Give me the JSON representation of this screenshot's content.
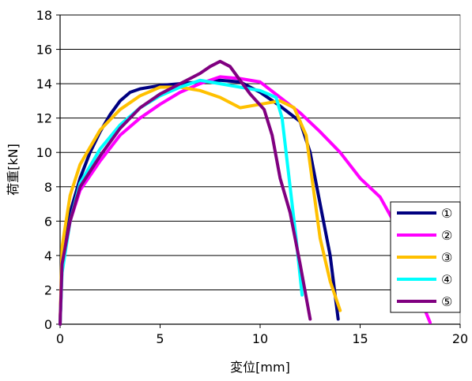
{
  "chart_data": {
    "type": "line",
    "xlabel": "変位[mm]",
    "ylabel": "荷重[kN]",
    "xlim": [
      0,
      20
    ],
    "ylim": [
      0,
      18
    ],
    "x_ticks": [
      0,
      5,
      10,
      15,
      20
    ],
    "y_ticks": [
      0,
      2,
      4,
      6,
      8,
      10,
      12,
      14,
      16,
      18
    ],
    "grid": "horizontal",
    "legend_position": "right",
    "series": [
      {
        "name": "①",
        "color": "#000080",
        "points": [
          [
            0,
            0
          ],
          [
            0.1,
            3.5
          ],
          [
            0.5,
            6.5
          ],
          [
            1,
            8.5
          ],
          [
            1.5,
            10
          ],
          [
            2,
            11.2
          ],
          [
            2.5,
            12.2
          ],
          [
            3,
            13
          ],
          [
            3.5,
            13.5
          ],
          [
            4,
            13.7
          ],
          [
            5,
            13.9
          ],
          [
            6,
            14
          ],
          [
            7,
            14.1
          ],
          [
            8,
            14.2
          ],
          [
            9,
            14.1
          ],
          [
            10,
            13.5
          ],
          [
            11,
            12.7
          ],
          [
            12,
            11.8
          ],
          [
            12.5,
            10
          ],
          [
            13,
            7
          ],
          [
            13.5,
            4
          ],
          [
            13.9,
            0.3
          ]
        ]
      },
      {
        "name": "②",
        "color": "#FF00FF",
        "points": [
          [
            0,
            0
          ],
          [
            0.1,
            3.5
          ],
          [
            0.5,
            6
          ],
          [
            1,
            7.8
          ],
          [
            2,
            9.5
          ],
          [
            3,
            11
          ],
          [
            4,
            12
          ],
          [
            5,
            12.8
          ],
          [
            6,
            13.5
          ],
          [
            7,
            14
          ],
          [
            8,
            14.4
          ],
          [
            9,
            14.3
          ],
          [
            10,
            14.1
          ],
          [
            11,
            13.2
          ],
          [
            12,
            12.3
          ],
          [
            13,
            11.2
          ],
          [
            14,
            10
          ],
          [
            15,
            8.5
          ],
          [
            16,
            7.4
          ],
          [
            17,
            5.3
          ],
          [
            18,
            1.5
          ],
          [
            18.5,
            0.1
          ]
        ]
      },
      {
        "name": "③",
        "color": "#FFC000",
        "points": [
          [
            0,
            0
          ],
          [
            0.1,
            4.5
          ],
          [
            0.5,
            7.5
          ],
          [
            1,
            9.3
          ],
          [
            2,
            11.3
          ],
          [
            3,
            12.5
          ],
          [
            4,
            13.3
          ],
          [
            5,
            13.8
          ],
          [
            6,
            13.8
          ],
          [
            7,
            13.6
          ],
          [
            8,
            13.2
          ],
          [
            9,
            12.6
          ],
          [
            10,
            12.8
          ],
          [
            11,
            13
          ],
          [
            11.7,
            12.6
          ],
          [
            12.3,
            11
          ],
          [
            13,
            5
          ],
          [
            13.5,
            2.5
          ],
          [
            14,
            0.8
          ]
        ]
      },
      {
        "name": "④",
        "color": "#00FFFF",
        "points": [
          [
            0,
            0
          ],
          [
            0.1,
            3
          ],
          [
            0.5,
            6
          ],
          [
            1,
            8.2
          ],
          [
            2,
            10.2
          ],
          [
            3,
            11.6
          ],
          [
            4,
            12.6
          ],
          [
            5,
            13.3
          ],
          [
            6,
            13.8
          ],
          [
            7,
            14.2
          ],
          [
            8,
            14
          ],
          [
            9,
            13.8
          ],
          [
            10,
            13.6
          ],
          [
            10.8,
            13.2
          ],
          [
            11.1,
            12
          ],
          [
            11.4,
            9
          ],
          [
            11.8,
            5
          ],
          [
            12.1,
            1.7
          ]
        ]
      },
      {
        "name": "⑤",
        "color": "#800080",
        "points": [
          [
            0,
            0
          ],
          [
            0.1,
            3.5
          ],
          [
            0.5,
            6
          ],
          [
            1,
            8
          ],
          [
            2,
            9.8
          ],
          [
            3,
            11.4
          ],
          [
            4,
            12.6
          ],
          [
            5,
            13.4
          ],
          [
            6,
            14
          ],
          [
            7,
            14.6
          ],
          [
            7.5,
            15
          ],
          [
            8,
            15.3
          ],
          [
            8.5,
            15
          ],
          [
            9,
            14.2
          ],
          [
            9.5,
            13.4
          ],
          [
            10.2,
            12.5
          ],
          [
            10.6,
            11
          ],
          [
            11,
            8.5
          ],
          [
            11.5,
            6.5
          ],
          [
            12,
            3.5
          ],
          [
            12.5,
            0.3
          ]
        ]
      }
    ]
  }
}
